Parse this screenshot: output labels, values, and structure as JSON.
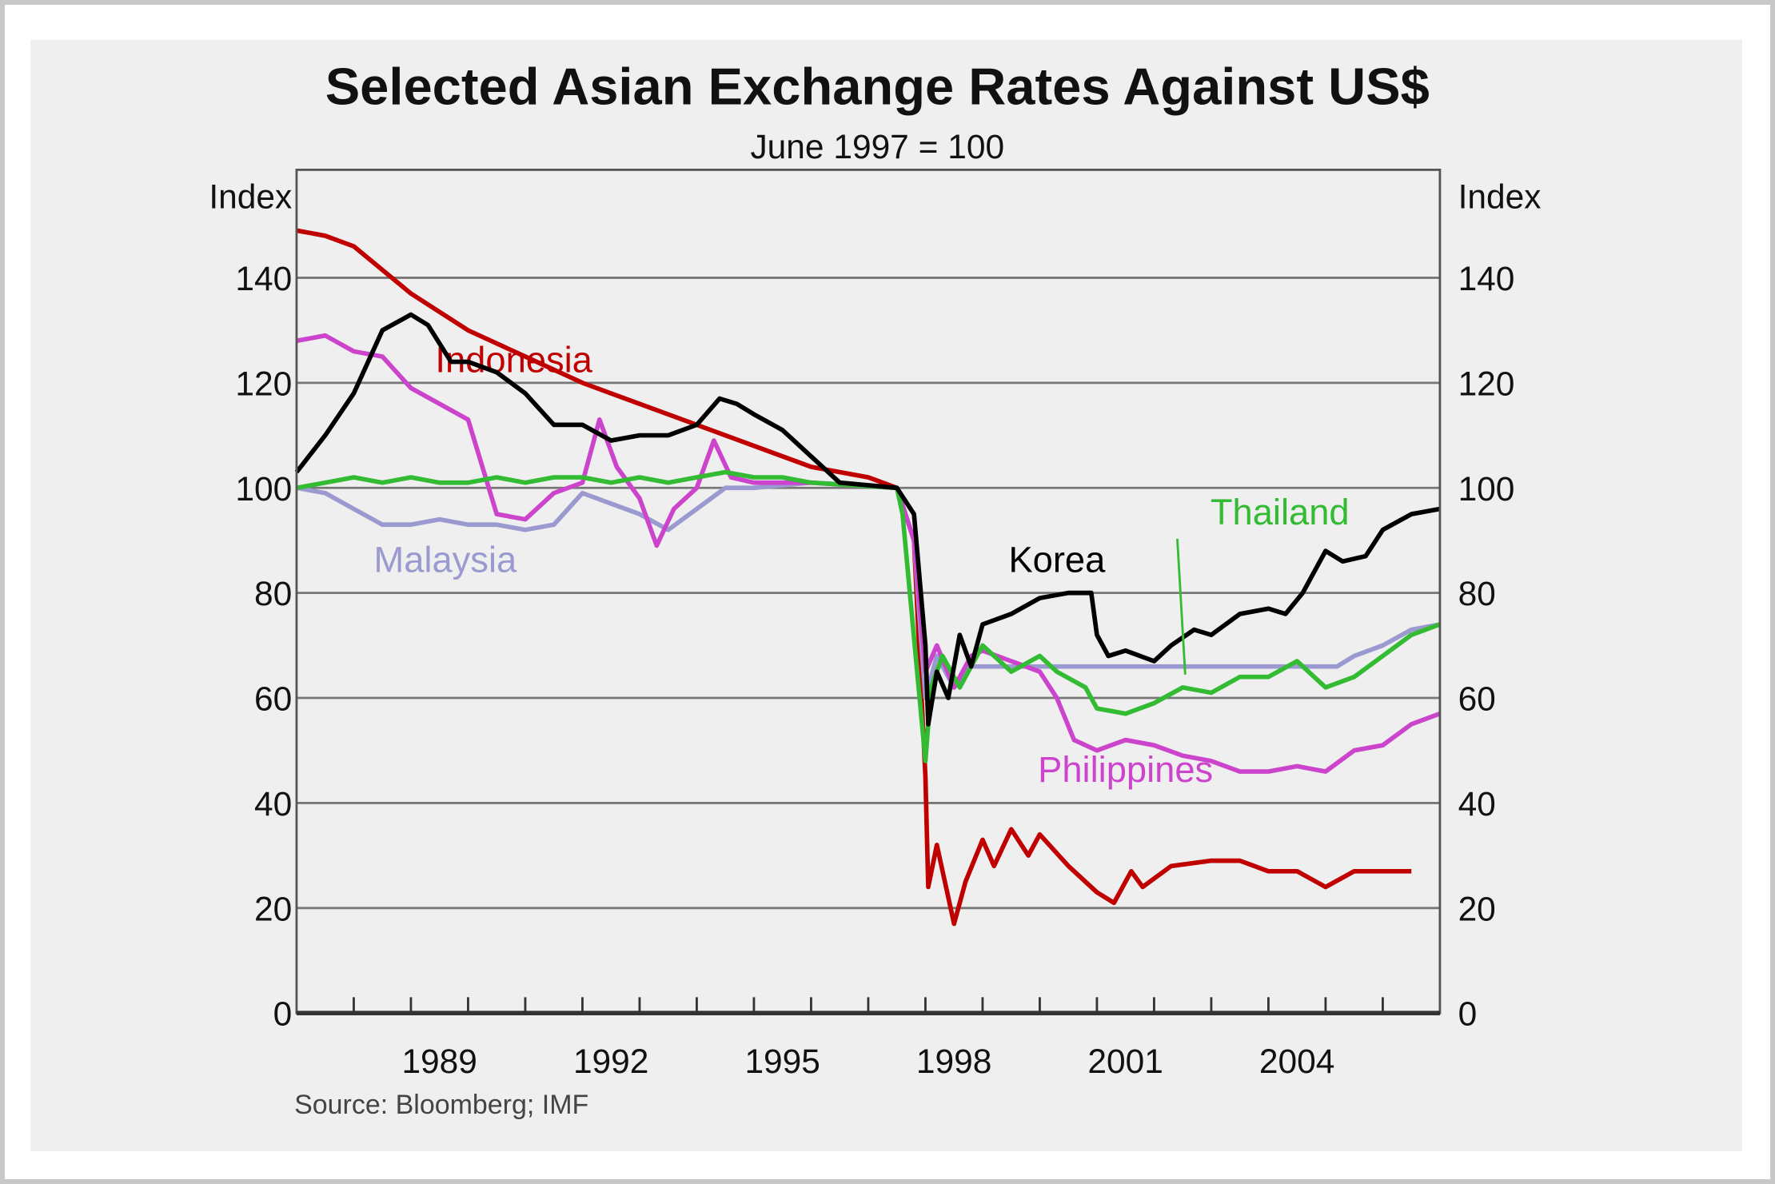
{
  "chart_data": {
    "type": "line",
    "title": "Selected Asian Exchange Rates Against US$",
    "subtitle": "June 1997 = 100",
    "ylabel_left": "Index",
    "ylabel_right": "Index",
    "source": "Source: Bloomberg; IMF",
    "xlim": [
      1987,
      2007
    ],
    "ylim": [
      0,
      160
    ],
    "yticks": [
      0,
      20,
      40,
      60,
      80,
      100,
      120,
      140
    ],
    "ytick_labels": [
      "0",
      "20",
      "40",
      "60",
      "80",
      "100",
      "120",
      "140"
    ],
    "xtick_labels": [
      {
        "label": "1989",
        "year": 1989
      },
      {
        "label": "1992",
        "year": 1992
      },
      {
        "label": "1995",
        "year": 1995
      },
      {
        "label": "1998",
        "year": 1998
      },
      {
        "label": "2001",
        "year": 2001
      },
      {
        "label": "2004",
        "year": 2004
      }
    ],
    "grid": true,
    "series": [
      {
        "name": "Indonesia",
        "color": "#c00000",
        "label_at": [
          1990.8,
          122
        ],
        "points": [
          [
            1987,
            149
          ],
          [
            1987.5,
            148
          ],
          [
            1988,
            146
          ],
          [
            1989,
            137
          ],
          [
            1990,
            130
          ],
          [
            1991,
            125
          ],
          [
            1992,
            120
          ],
          [
            1993,
            116
          ],
          [
            1994,
            112
          ],
          [
            1995,
            108
          ],
          [
            1996,
            104
          ],
          [
            1997,
            102
          ],
          [
            1997.5,
            100
          ],
          [
            1997.8,
            90
          ],
          [
            1998,
            45
          ],
          [
            1998.05,
            24
          ],
          [
            1998.2,
            32
          ],
          [
            1998.5,
            17
          ],
          [
            1998.7,
            25
          ],
          [
            1999,
            33
          ],
          [
            1999.2,
            28
          ],
          [
            1999.5,
            35
          ],
          [
            1999.8,
            30
          ],
          [
            2000,
            34
          ],
          [
            2000.5,
            28
          ],
          [
            2001,
            23
          ],
          [
            2001.3,
            21
          ],
          [
            2001.6,
            27
          ],
          [
            2001.8,
            24
          ],
          [
            2002.3,
            28
          ],
          [
            2003,
            29
          ],
          [
            2003.5,
            29
          ],
          [
            2004,
            27
          ],
          [
            2004.5,
            27
          ],
          [
            2005,
            24
          ],
          [
            2005.5,
            27
          ],
          [
            2006,
            27
          ],
          [
            2006.5,
            27
          ]
        ]
      },
      {
        "name": "Malaysia",
        "color": "#9a9ad0",
        "label_at": [
          1989.6,
          84
        ],
        "points": [
          [
            1987,
            100
          ],
          [
            1987.5,
            99
          ],
          [
            1988,
            96
          ],
          [
            1988.5,
            93
          ],
          [
            1989,
            93
          ],
          [
            1989.5,
            94
          ],
          [
            1990,
            93
          ],
          [
            1990.5,
            93
          ],
          [
            1991,
            92
          ],
          [
            1991.5,
            93
          ],
          [
            1992,
            99
          ],
          [
            1992.5,
            97
          ],
          [
            1993,
            95
          ],
          [
            1993.5,
            92
          ],
          [
            1994,
            96
          ],
          [
            1994.5,
            100
          ],
          [
            1995,
            100
          ],
          [
            1996,
            101
          ],
          [
            1997.5,
            100
          ],
          [
            1997.8,
            90
          ],
          [
            1998,
            60
          ],
          [
            1998.2,
            68
          ],
          [
            1998.5,
            62
          ],
          [
            1998.8,
            66
          ],
          [
            1999,
            66
          ],
          [
            2005.2,
            66
          ],
          [
            2005.5,
            68
          ],
          [
            2006,
            70
          ],
          [
            2006.5,
            73
          ],
          [
            2007,
            74
          ]
        ]
      },
      {
        "name": "Philippines",
        "color": "#cc44cc",
        "label_at": [
          2001.5,
          44
        ],
        "points": [
          [
            1987,
            128
          ],
          [
            1987.5,
            129
          ],
          [
            1988,
            126
          ],
          [
            1988.5,
            125
          ],
          [
            1989,
            119
          ],
          [
            1990,
            113
          ],
          [
            1990.5,
            95
          ],
          [
            1991,
            94
          ],
          [
            1991.5,
            99
          ],
          [
            1992,
            101
          ],
          [
            1992.3,
            113
          ],
          [
            1992.6,
            104
          ],
          [
            1993,
            98
          ],
          [
            1993.3,
            89
          ],
          [
            1993.6,
            96
          ],
          [
            1994,
            100
          ],
          [
            1994.3,
            109
          ],
          [
            1994.6,
            102
          ],
          [
            1995,
            101
          ],
          [
            1996,
            101
          ],
          [
            1997.5,
            100
          ],
          [
            1997.8,
            90
          ],
          [
            1998,
            65
          ],
          [
            1998.2,
            70
          ],
          [
            1998.5,
            62
          ],
          [
            1998.8,
            68
          ],
          [
            1999,
            69
          ],
          [
            1999.5,
            67
          ],
          [
            2000,
            65
          ],
          [
            2000.3,
            60
          ],
          [
            2000.6,
            52
          ],
          [
            2001,
            50
          ],
          [
            2001.5,
            52
          ],
          [
            2002,
            51
          ],
          [
            2002.5,
            49
          ],
          [
            2003,
            48
          ],
          [
            2003.5,
            46
          ],
          [
            2004,
            46
          ],
          [
            2004.5,
            47
          ],
          [
            2005,
            46
          ],
          [
            2005.5,
            50
          ],
          [
            2006,
            51
          ],
          [
            2006.5,
            55
          ],
          [
            2007,
            57
          ]
        ]
      },
      {
        "name": "Thailand",
        "color": "#33bb33",
        "label_at": [
          2004.2,
          93
        ],
        "points": [
          [
            1987,
            100
          ],
          [
            1987.5,
            101
          ],
          [
            1988,
            102
          ],
          [
            1988.5,
            101
          ],
          [
            1989,
            102
          ],
          [
            1989.5,
            101
          ],
          [
            1990,
            101
          ],
          [
            1990.5,
            102
          ],
          [
            1991,
            101
          ],
          [
            1991.5,
            102
          ],
          [
            1992,
            102
          ],
          [
            1992.5,
            101
          ],
          [
            1993,
            102
          ],
          [
            1993.5,
            101
          ],
          [
            1994,
            102
          ],
          [
            1994.5,
            103
          ],
          [
            1995,
            102
          ],
          [
            1995.5,
            102
          ],
          [
            1996,
            101
          ],
          [
            1997.5,
            100
          ],
          [
            1997.6,
            95
          ],
          [
            1998,
            48
          ],
          [
            1998.1,
            62
          ],
          [
            1998.3,
            68
          ],
          [
            1998.6,
            62
          ],
          [
            1999,
            70
          ],
          [
            1999.5,
            65
          ],
          [
            2000,
            68
          ],
          [
            2000.3,
            65
          ],
          [
            2000.8,
            62
          ],
          [
            2001,
            58
          ],
          [
            2001.5,
            57
          ],
          [
            2002,
            59
          ],
          [
            2002.5,
            62
          ],
          [
            2003,
            61
          ],
          [
            2003.5,
            64
          ],
          [
            2004,
            64
          ],
          [
            2004.5,
            67
          ],
          [
            2005,
            62
          ],
          [
            2005.5,
            64
          ],
          [
            2006,
            68
          ],
          [
            2006.5,
            72
          ],
          [
            2007,
            74
          ]
        ]
      },
      {
        "name": "Korea",
        "color": "#000000",
        "label_at": [
          2000.3,
          84
        ],
        "points": [
          [
            1987,
            103
          ],
          [
            1987.5,
            110
          ],
          [
            1988,
            118
          ],
          [
            1988.5,
            130
          ],
          [
            1989,
            133
          ],
          [
            1989.3,
            131
          ],
          [
            1989.7,
            124
          ],
          [
            1990,
            124
          ],
          [
            1990.5,
            122
          ],
          [
            1991,
            118
          ],
          [
            1991.5,
            112
          ],
          [
            1992,
            112
          ],
          [
            1992.5,
            109
          ],
          [
            1993,
            110
          ],
          [
            1993.5,
            110
          ],
          [
            1994,
            112
          ],
          [
            1994.4,
            117
          ],
          [
            1994.7,
            116
          ],
          [
            1995,
            114
          ],
          [
            1995.5,
            111
          ],
          [
            1996,
            106
          ],
          [
            1996.5,
            101
          ],
          [
            1997.5,
            100
          ],
          [
            1997.8,
            95
          ],
          [
            1998,
            70
          ],
          [
            1998.05,
            55
          ],
          [
            1998.2,
            65
          ],
          [
            1998.4,
            60
          ],
          [
            1998.6,
            72
          ],
          [
            1998.8,
            66
          ],
          [
            1999,
            74
          ],
          [
            1999.5,
            76
          ],
          [
            2000,
            79
          ],
          [
            2000.5,
            80
          ],
          [
            2000.9,
            80
          ],
          [
            2001,
            72
          ],
          [
            2001.2,
            68
          ],
          [
            2001.5,
            69
          ],
          [
            2002,
            67
          ],
          [
            2002.3,
            70
          ],
          [
            2002.7,
            73
          ],
          [
            2003,
            72
          ],
          [
            2003.5,
            76
          ],
          [
            2004,
            77
          ],
          [
            2004.3,
            76
          ],
          [
            2004.6,
            80
          ],
          [
            2005,
            88
          ],
          [
            2005.3,
            86
          ],
          [
            2005.7,
            87
          ],
          [
            2006,
            92
          ],
          [
            2006.5,
            95
          ],
          [
            2007,
            96
          ]
        ]
      }
    ]
  }
}
